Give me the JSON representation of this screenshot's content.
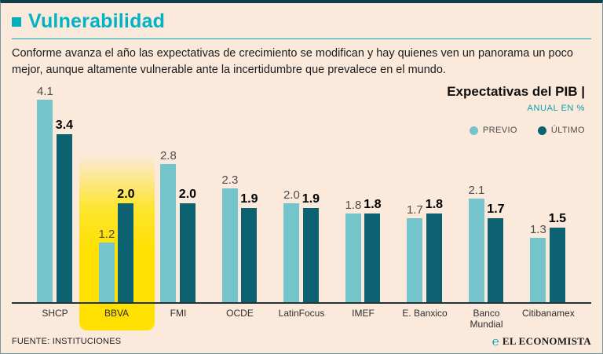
{
  "page": {
    "title": "Vulnerabilidad",
    "description": "Conforme avanza el año las expectativas de crecimiento se modifican y hay quienes ven un panorama un poco mejor, aunque altamente vulnerable ante la incertidumbre que prevalece en el mundo.",
    "footer_source": "FUENTE: INSTITUCIONES",
    "brand": "EL ECONOMISTA",
    "brand_mark": "℮"
  },
  "chart_data": {
    "type": "bar",
    "title": "Expectativas del PIB |",
    "subtitle": "ANUAL EN %",
    "unit": "%",
    "ylim": [
      0,
      4.5
    ],
    "legend": [
      {
        "label": "PREVIO",
        "color": "#73c4cb"
      },
      {
        "label": "ÚLTIMO",
        "color": "#0d6272"
      }
    ],
    "categories": [
      "SHCP",
      "BBVA",
      "FMI",
      "OCDE",
      "LatinFocus",
      "IMEF",
      "E. Banxico",
      "Banco Mundial",
      "Citibanamex"
    ],
    "series": [
      {
        "name": "PREVIO",
        "color": "#73c4cb",
        "values": [
          4.1,
          1.2,
          2.8,
          2.3,
          2.0,
          1.8,
          1.7,
          2.1,
          1.3
        ]
      },
      {
        "name": "ÚLTIMO",
        "color": "#0d6272",
        "values": [
          3.4,
          2.0,
          2.0,
          1.9,
          1.9,
          1.8,
          1.8,
          1.7,
          1.5
        ]
      }
    ],
    "highlighted_category": "BBVA",
    "colors": {
      "highlight": "#ffe000",
      "background": "#fbe9dc",
      "accent": "#00b4c6"
    }
  }
}
